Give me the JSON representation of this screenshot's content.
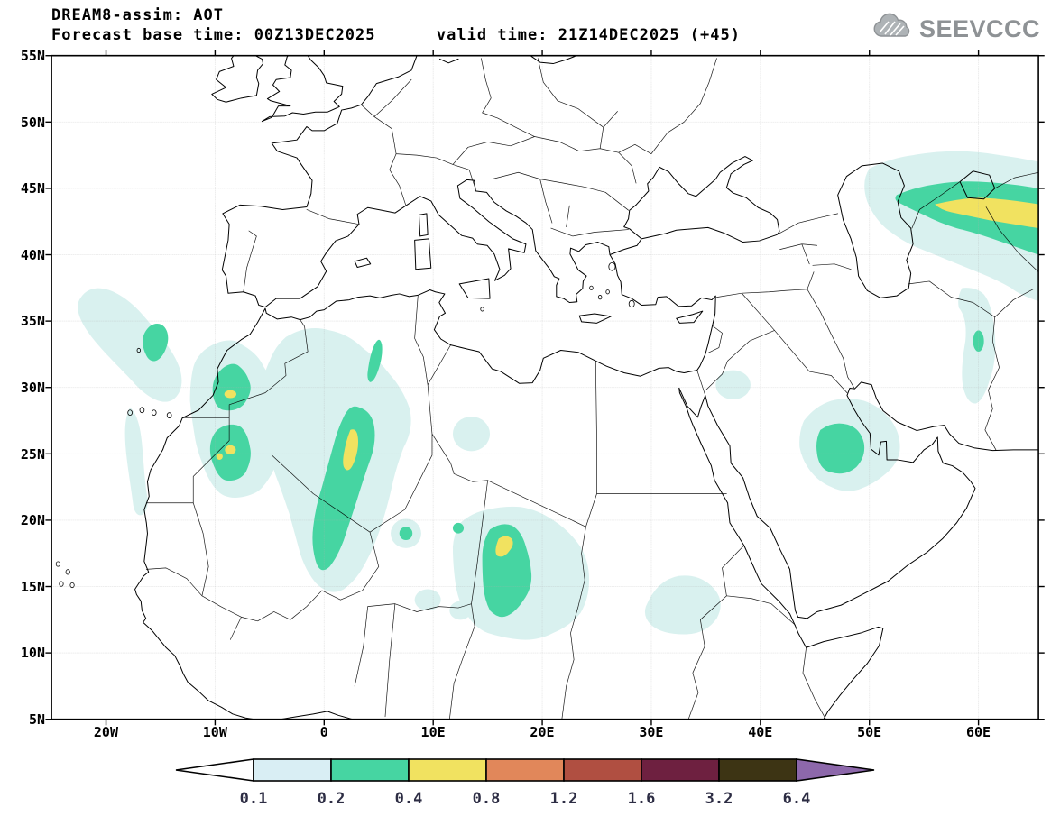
{
  "header": {
    "title": "DREAM8-assim: AOT",
    "subtitle": "Forecast base time: 00Z13DEC2025      valid time: 21Z14DEC2025 (+45)",
    "logo_text": "SEEVCCC"
  },
  "map": {
    "lat_ticks": [
      "55N",
      "50N",
      "45N",
      "40N",
      "35N",
      "30N",
      "25N",
      "20N",
      "15N",
      "10N",
      "5N"
    ],
    "lon_ticks": [
      "20W",
      "10W",
      "0",
      "10E",
      "20E",
      "30E",
      "40E",
      "50E",
      "60E"
    ]
  },
  "colorbar": {
    "labels": [
      "0.1",
      "0.2",
      "0.4",
      "0.8",
      "1.2",
      "1.6",
      "3.2",
      "6.4"
    ],
    "segment_colors": [
      "#ffffff",
      "#d9eef4",
      "#46d5a2",
      "#f1e260",
      "#e1875a",
      "#b04f41",
      "#6e2040",
      "#3d3414",
      "#8d68ab"
    ],
    "label_color": "#2d2d44"
  },
  "chart_data": {
    "type": "heatmap",
    "title": "DREAM8-assim: AOT",
    "variable": "Aerosol Optical Thickness (dust AOT), filled contours",
    "forecast_base_time": "00Z13DEC2025",
    "valid_time": "21Z14DEC2025",
    "forecast_hour": "+45",
    "projection": "regular lat-lon",
    "x": {
      "tick_labels": [
        "20W",
        "10W",
        "0",
        "10E",
        "20E",
        "30E",
        "40E",
        "50E",
        "60E"
      ],
      "lon_range": [
        -24.9,
        65.5
      ]
    },
    "y": {
      "tick_labels": [
        "5N",
        "10N",
        "15N",
        "20N",
        "25N",
        "30N",
        "35N",
        "40N",
        "45N",
        "50N",
        "55N"
      ],
      "lat_range": [
        5,
        55
      ]
    },
    "grid": true,
    "contour_levels": [
      0.1,
      0.2,
      0.4,
      0.8,
      1.2,
      1.6,
      3.2,
      6.4
    ],
    "level_colors": {
      "0.1-0.2": "#d9eef4",
      "0.2-0.4": "#46d5a2",
      "0.4-0.8": "#f1e260",
      "0.8-1.2": "#e1875a",
      "1.2-1.6": "#b04f41",
      "1.6-3.2": "#6e2040",
      "3.2-6.4": "#3d3414",
      ">6.4": "#8d68ab"
    },
    "max_level_visible_on_map": "0.4-0.8",
    "plumes": [
      {
        "name": "NW Africa offshore Atlantic band",
        "approx_center_lonlat": [
          -17,
          32
        ],
        "peak_aot_bin": "0.2-0.4"
      },
      {
        "name": "Morocco / Western Sahara",
        "approx_center_lonlat": [
          -8,
          27
        ],
        "peak_aot_bin": "0.4-0.8"
      },
      {
        "name": "Central Sahara (Algeria-Mali) elongated plume",
        "approx_center_lonlat": [
          2,
          24
        ],
        "peak_aot_bin": "0.4-0.8"
      },
      {
        "name": "Chad / Sudan (Bodele) plume",
        "approx_center_lonlat": [
          17,
          16
        ],
        "peak_aot_bin": "0.4-0.8"
      },
      {
        "name": "Sahel spots (Niger / Nigeria)",
        "approx_center_lonlat": [
          10,
          14
        ],
        "peak_aot_bin": "0.1-0.2"
      },
      {
        "name": "Sudan / Ethiopia patch",
        "approx_center_lonlat": [
          32,
          14
        ],
        "peak_aot_bin": "0.1-0.2"
      },
      {
        "name": "Central Saudi Arabia",
        "approx_center_lonlat": [
          47,
          25.5
        ],
        "peak_aot_bin": "0.2-0.4"
      },
      {
        "name": "Caspian / Aral Central-Asia plume",
        "approx_center_lonlat": [
          60,
          43.5
        ],
        "peak_aot_bin": "0.4-0.8"
      },
      {
        "name": "Eastern Iran streak",
        "approx_center_lonlat": [
          60,
          33
        ],
        "peak_aot_bin": "0.2-0.4"
      }
    ],
    "legend_position": "bottom horizontal colorbar with out-of-range arrows"
  }
}
